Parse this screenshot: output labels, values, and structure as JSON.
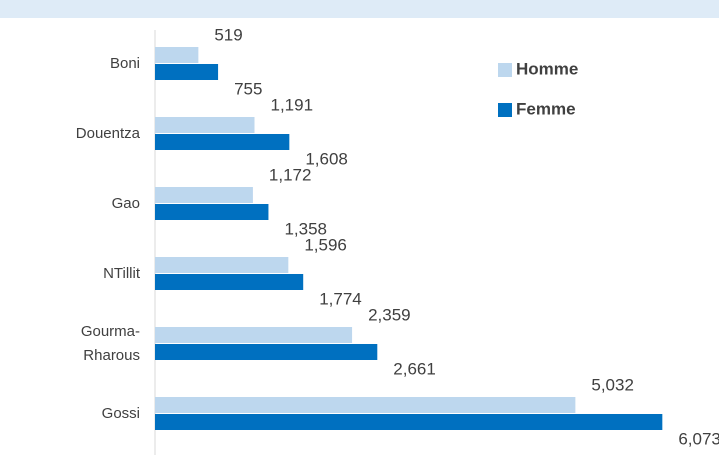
{
  "chart_data": {
    "type": "bar",
    "orientation": "horizontal",
    "categories": [
      "Boni",
      "Douentza",
      "Gao",
      "NTillit",
      "Gourma-Rharous",
      "Gossi"
    ],
    "series": [
      {
        "name": "Homme",
        "color": "#bdd7ee",
        "values": [
          519,
          1191,
          1172,
          1596,
          2359,
          5032
        ],
        "value_labels": [
          "519",
          "1,191",
          "1,172",
          "1,596",
          "2,359",
          "5,032"
        ]
      },
      {
        "name": "Femme",
        "color": "#0070c0",
        "values": [
          755,
          1608,
          1358,
          1774,
          2661,
          6073
        ],
        "value_labels": [
          "755",
          "1,608",
          "1,358",
          "1,774",
          "2,661",
          "6,073"
        ]
      }
    ],
    "xlim": [
      0,
      6500
    ],
    "legend": "upper right"
  }
}
